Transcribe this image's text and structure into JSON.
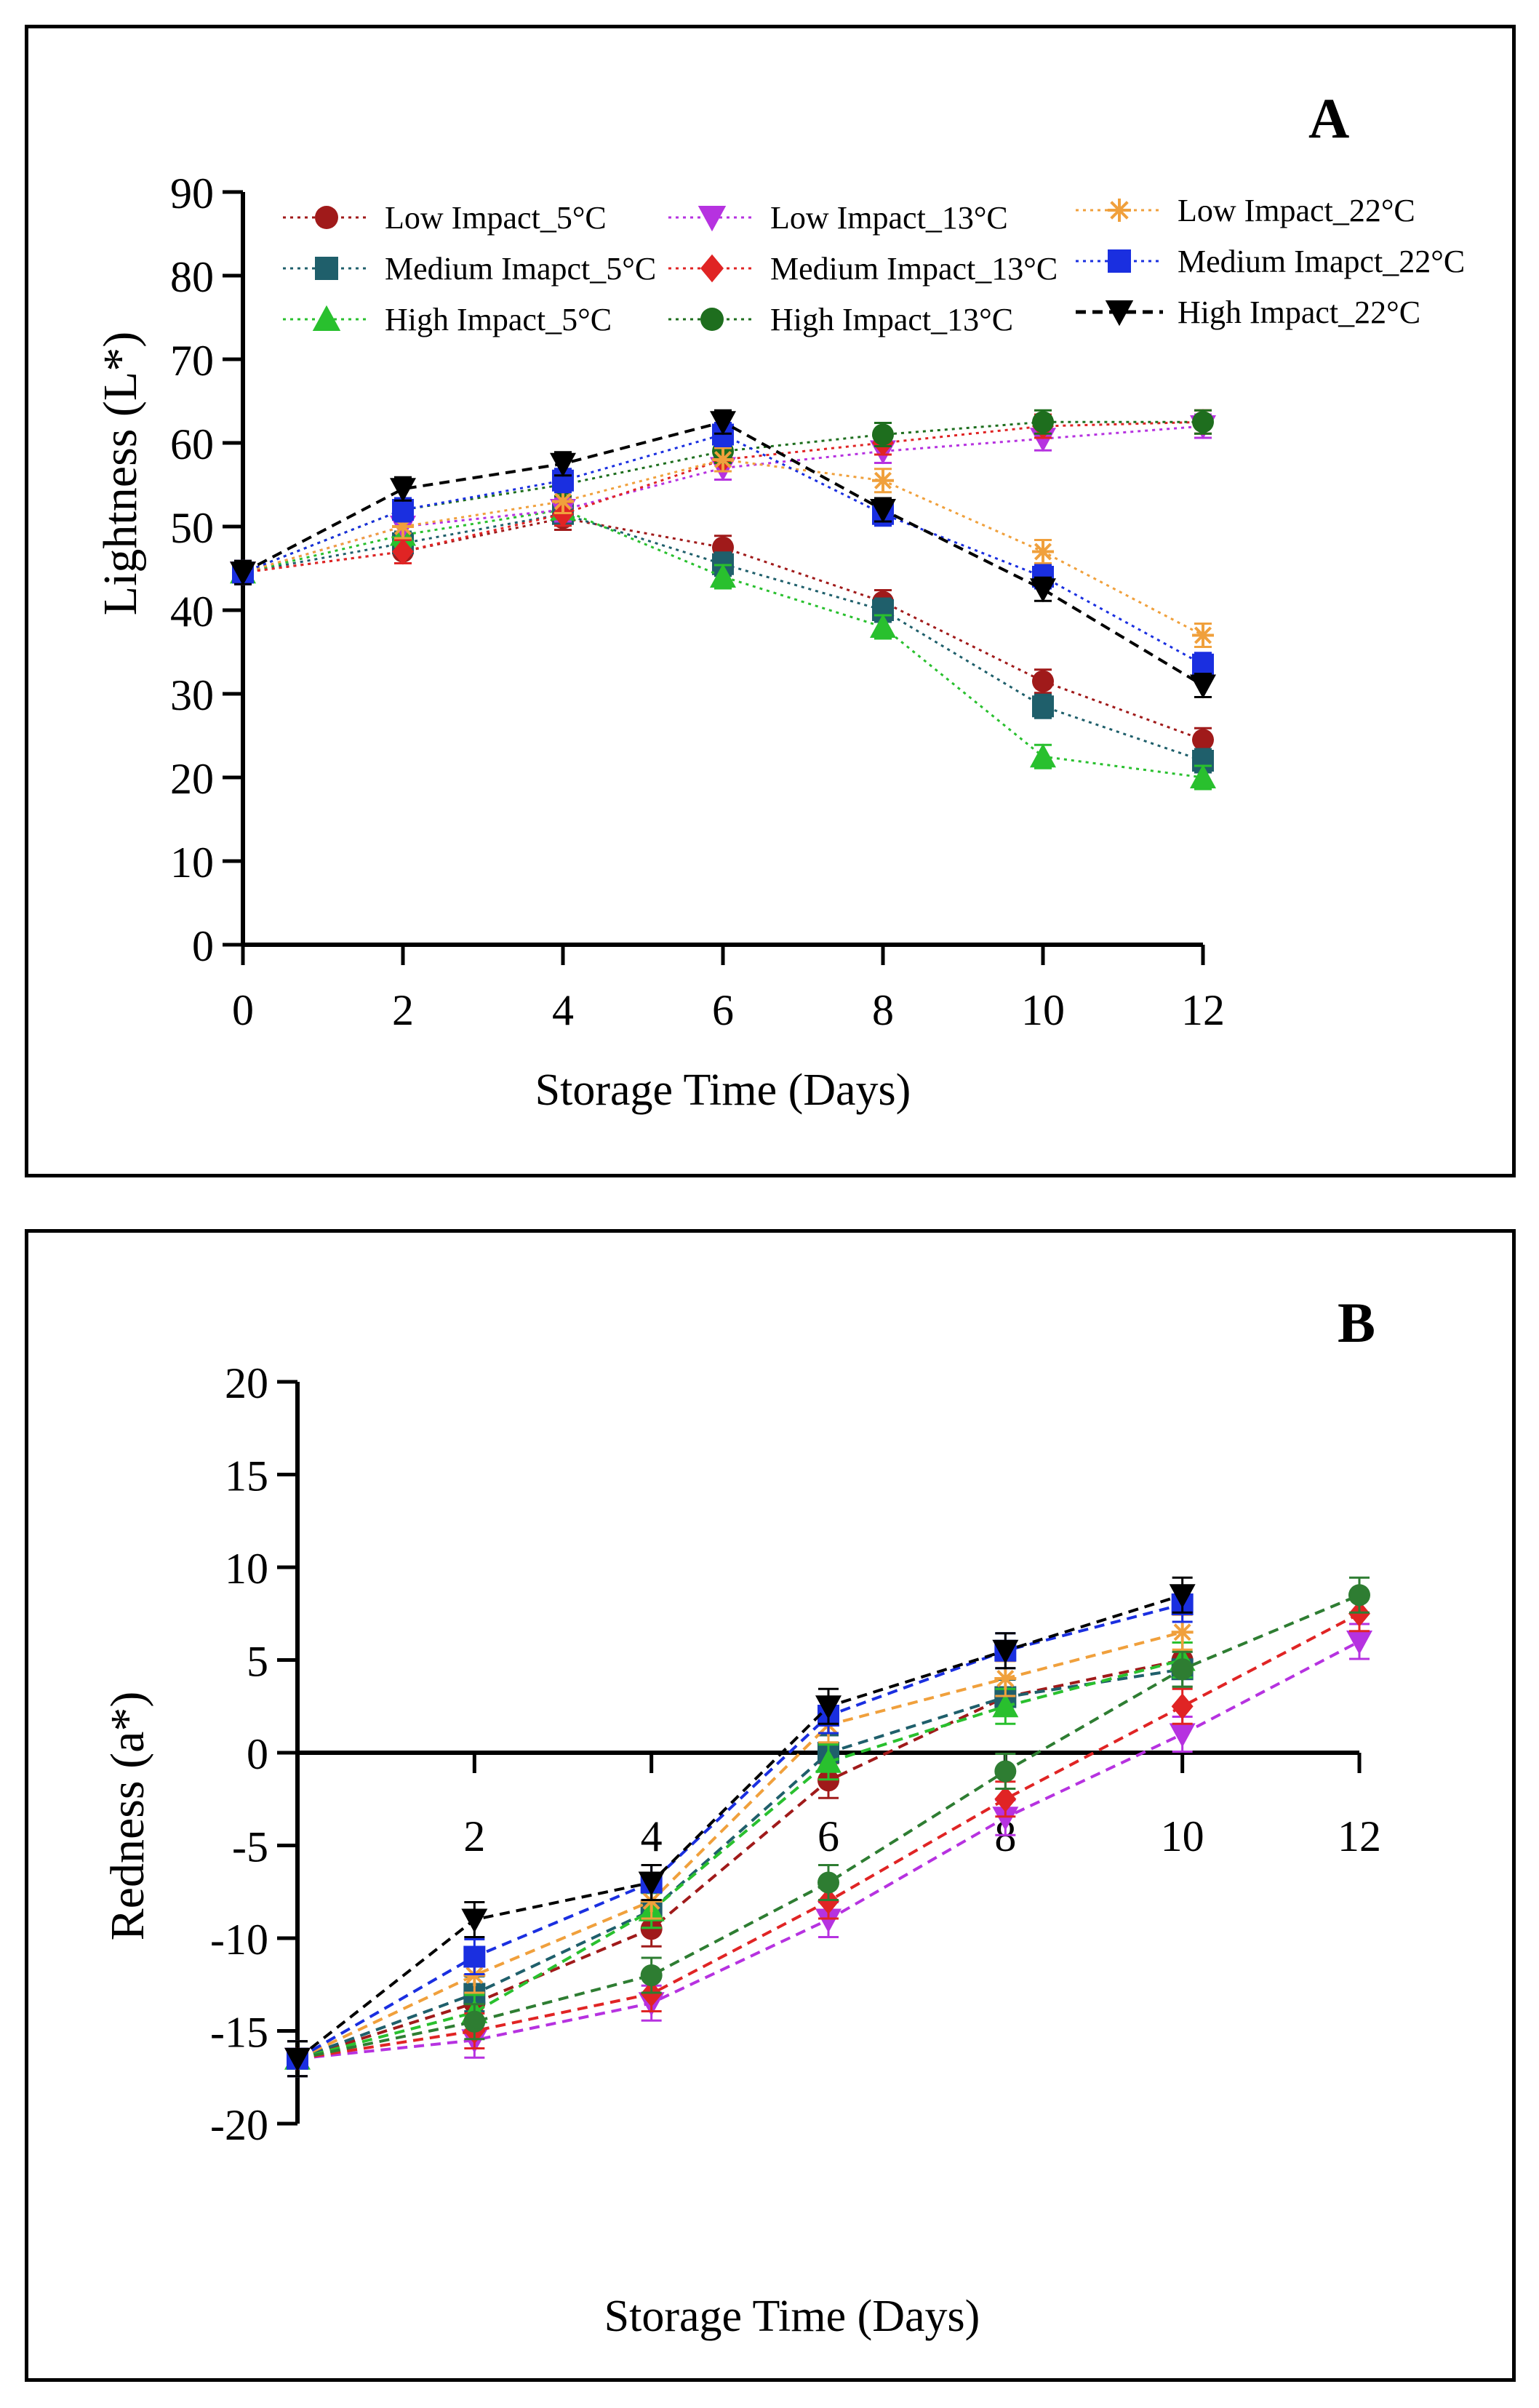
{
  "chart_data": [
    {
      "type": "line",
      "panel_label": "A",
      "xlabel": "Storage Time (Days)",
      "ylabel": "Lightness (L*)",
      "ylim": [
        0,
        90
      ],
      "xlim": [
        0,
        12
      ],
      "x_ticks": [
        "0",
        "2",
        "4",
        "6",
        "8",
        "10",
        "12"
      ],
      "y_ticks": [
        "0",
        "10",
        "20",
        "30",
        "40",
        "50",
        "60",
        "70",
        "80",
        "90"
      ],
      "legend_position": "top",
      "series": [
        {
          "name": "Low Impact_5°C",
          "color": "#a01a1a",
          "marker": "circle",
          "dash": "dotted",
          "x": [
            0,
            2,
            4,
            6,
            8,
            10,
            12
          ],
          "values": [
            44.5,
            47,
            51,
            47.5,
            41,
            31.5,
            24.5
          ]
        },
        {
          "name": "Medium Imapct_5°C",
          "color": "#1f5f6b",
          "marker": "square",
          "dash": "dotted",
          "x": [
            0,
            2,
            4,
            6,
            8,
            10,
            12
          ],
          "values": [
            44.5,
            48,
            51.5,
            45.5,
            40,
            28.5,
            22
          ]
        },
        {
          "name": "High Impact_5°C",
          "color": "#29c02e",
          "marker": "triangle-up",
          "dash": "dotted",
          "x": [
            0,
            2,
            4,
            6,
            8,
            10,
            12
          ],
          "values": [
            44.5,
            49,
            52,
            44,
            38,
            22.5,
            20
          ]
        },
        {
          "name": "Low Impact_13°C",
          "color": "#b632e0",
          "marker": "triangle-down",
          "dash": "dotted",
          "x": [
            0,
            2,
            4,
            6,
            8,
            10,
            12
          ],
          "values": [
            44.5,
            50,
            52,
            57,
            59,
            60.5,
            62
          ]
        },
        {
          "name": "Medium Impact_13°C",
          "color": "#e02424",
          "marker": "diamond",
          "dash": "dotted",
          "x": [
            0,
            2,
            4,
            6,
            8,
            10,
            12
          ],
          "values": [
            44.5,
            47,
            51.5,
            58,
            60,
            62,
            62.5
          ]
        },
        {
          "name": "High Impact_13°C",
          "color": "#1e6e1e",
          "marker": "circle",
          "dash": "dotted",
          "x": [
            0,
            2,
            4,
            6,
            8,
            10,
            12
          ],
          "values": [
            44.5,
            52,
            55,
            59,
            61,
            62.5,
            62.5
          ]
        },
        {
          "name": "Low Impact_22°C",
          "color": "#f0a03c",
          "marker": "asterisk",
          "dash": "dotted",
          "x": [
            0,
            2,
            4,
            6,
            8,
            10,
            12
          ],
          "values": [
            44.5,
            50,
            53,
            58,
            55.5,
            47,
            37
          ]
        },
        {
          "name": "Medium Imapct_22°C",
          "color": "#1a2fe0",
          "marker": "square",
          "dash": "dotted",
          "x": [
            0,
            2,
            4,
            6,
            8,
            10,
            12
          ],
          "values": [
            44.5,
            52,
            55.5,
            61,
            51.5,
            44,
            33.5
          ]
        },
        {
          "name": "High Impact_22°C",
          "color": "#000000",
          "marker": "triangle-down",
          "dash": "dashed",
          "x": [
            0,
            2,
            4,
            6,
            8,
            10,
            12
          ],
          "values": [
            44.5,
            54.5,
            57.5,
            62.5,
            52,
            42.5,
            31
          ]
        }
      ]
    },
    {
      "type": "line",
      "panel_label": "B",
      "xlabel": "Storage Time (Days)",
      "ylabel": "Redness (a*)",
      "ylim": [
        -20,
        20
      ],
      "xlim": [
        0,
        12
      ],
      "x_ticks": [
        "2",
        "4",
        "6",
        "8",
        "10",
        "12"
      ],
      "y_ticks": [
        "-20",
        "-15",
        "-10",
        "-5",
        "0",
        "5",
        "10",
        "15",
        "20"
      ],
      "series": [
        {
          "name": "Low Impact_5°C",
          "color": "#a01a1a",
          "marker": "circle",
          "dash": "dashed",
          "x": [
            0,
            2,
            4,
            6,
            8,
            10
          ],
          "values": [
            -16.5,
            -13.5,
            -9.5,
            -1.5,
            3,
            5
          ]
        },
        {
          "name": "Medium Imapct_5°C",
          "color": "#1f5f6b",
          "marker": "square",
          "dash": "dashed",
          "x": [
            0,
            2,
            4,
            6,
            8,
            10
          ],
          "values": [
            -16.5,
            -13,
            -8.5,
            0,
            3,
            4.5
          ]
        },
        {
          "name": "High Impact_5°C",
          "color": "#29c02e",
          "marker": "triangle-up",
          "dash": "dashed",
          "x": [
            0,
            2,
            4,
            6,
            8,
            10
          ],
          "values": [
            -16.5,
            -14,
            -8.5,
            -0.5,
            2.5,
            5
          ]
        },
        {
          "name": "Low Impact_13°C",
          "color": "#b632e0",
          "marker": "triangle-down",
          "dash": "dashed",
          "x": [
            0,
            2,
            4,
            6,
            8,
            10,
            12
          ],
          "values": [
            -16.5,
            -15.5,
            -13.5,
            -9,
            -3.5,
            1,
            6
          ]
        },
        {
          "name": "Medium Impact_13°C",
          "color": "#e02424",
          "marker": "diamond",
          "dash": "dashed",
          "x": [
            0,
            2,
            4,
            6,
            8,
            10,
            12
          ],
          "values": [
            -16.5,
            -15,
            -13,
            -8,
            -2.5,
            2.5,
            7.5
          ]
        },
        {
          "name": "High Impact_13°C",
          "color": "#2e7d32",
          "marker": "circle",
          "dash": "dashed",
          "x": [
            0,
            2,
            4,
            6,
            8,
            10,
            12
          ],
          "values": [
            -16.5,
            -14.5,
            -12,
            -7,
            -1,
            4.5,
            8.5
          ]
        },
        {
          "name": "Low Impact_22°C",
          "color": "#f0a03c",
          "marker": "asterisk",
          "dash": "dashed",
          "x": [
            0,
            2,
            4,
            6,
            8,
            10
          ],
          "values": [
            -16.5,
            -12,
            -8,
            1.5,
            4,
            6.5
          ]
        },
        {
          "name": "Medium Imapct_22°C",
          "color": "#1a2fe0",
          "marker": "square",
          "dash": "dashed",
          "x": [
            0,
            2,
            4,
            6,
            8,
            10
          ],
          "values": [
            -16.5,
            -11,
            -7,
            2,
            5.5,
            8
          ]
        },
        {
          "name": "High Impact_22°C",
          "color": "#000000",
          "marker": "triangle-down",
          "dash": "dashed",
          "x": [
            0,
            2,
            4,
            6,
            8,
            10
          ],
          "values": [
            -16.5,
            -9,
            -7,
            2.5,
            5.5,
            8.5
          ]
        }
      ]
    }
  ]
}
